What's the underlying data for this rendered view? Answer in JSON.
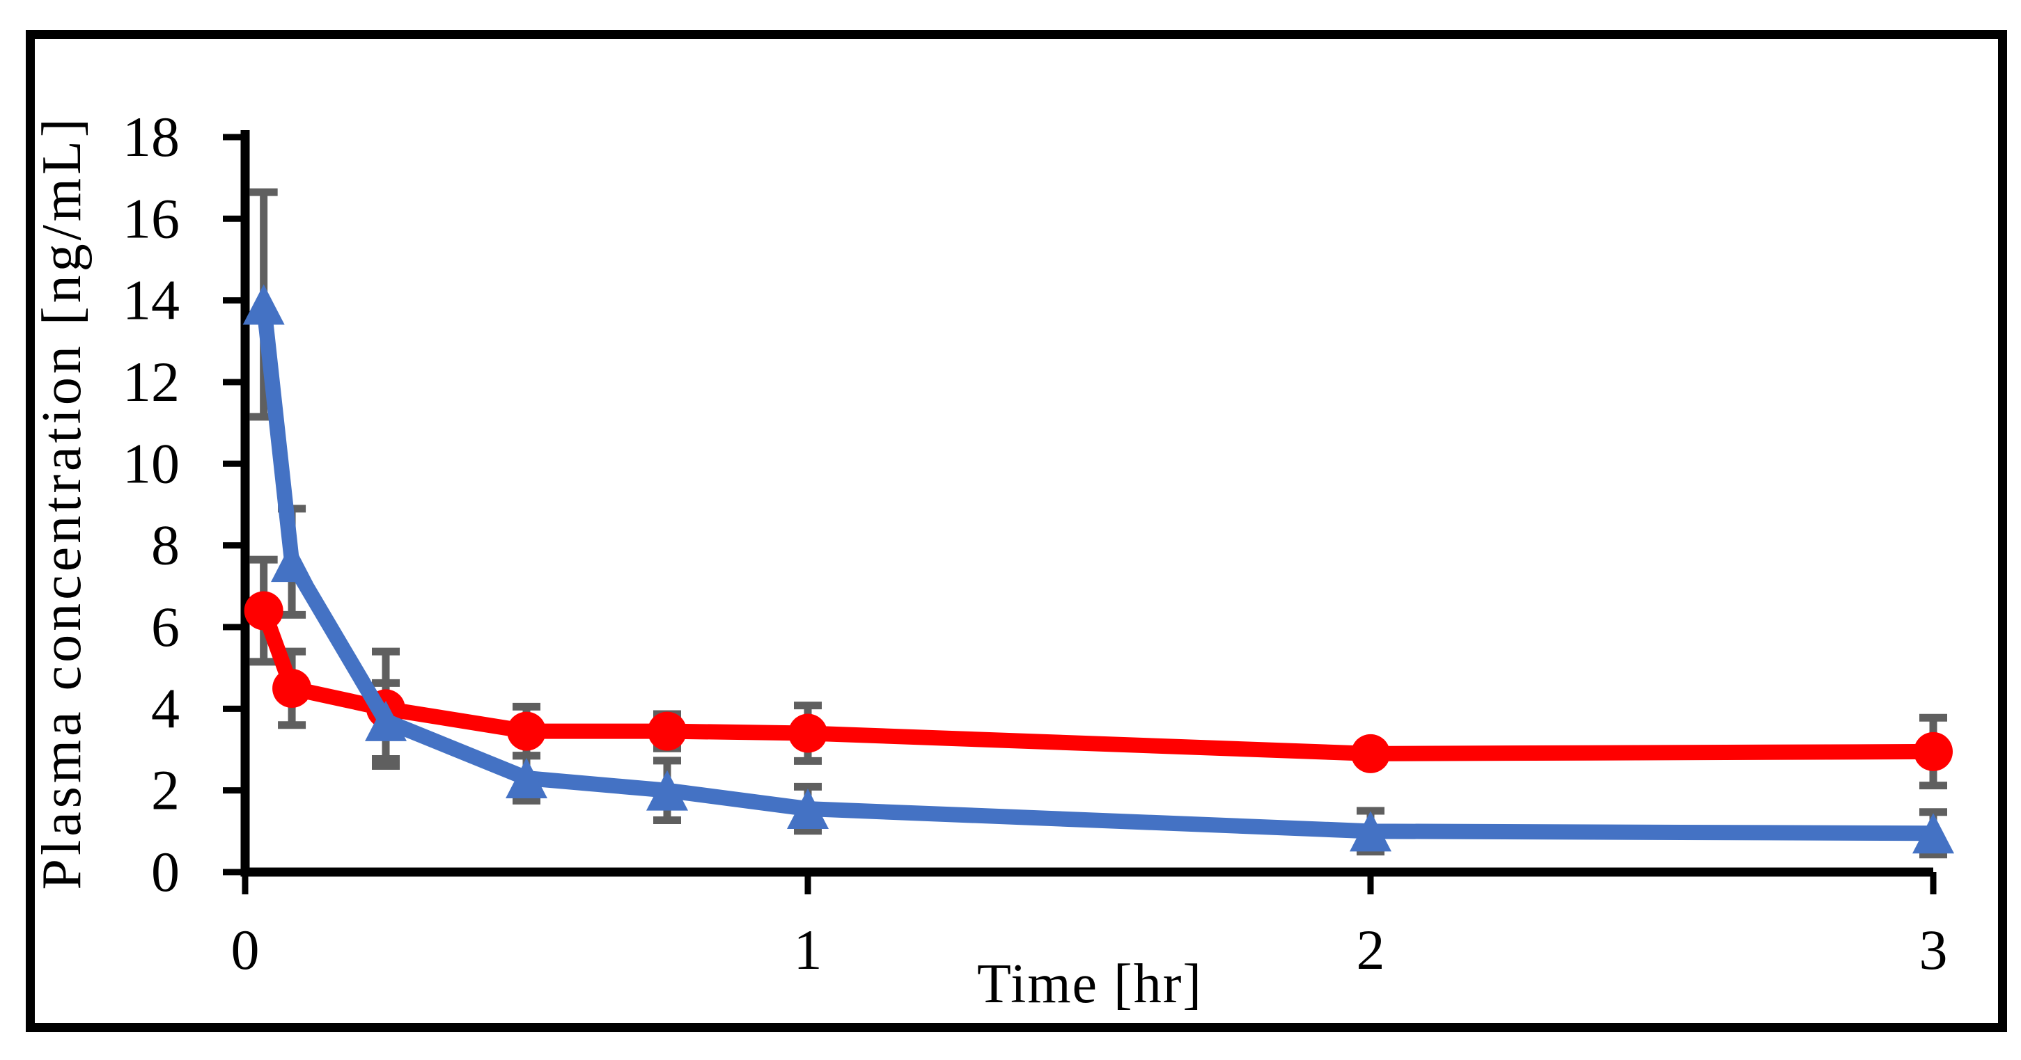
{
  "chart_data": {
    "type": "line",
    "xlabel": "Time [hr]",
    "ylabel": "Plasma concentration [ng/mL]",
    "x": [
      0.033,
      0.083,
      0.25,
      0.5,
      0.75,
      1,
      2,
      3
    ],
    "series": [
      {
        "name": "red-circle-series",
        "marker": "circle",
        "color": "#ff0000",
        "values": [
          6.4,
          4.5,
          4.0,
          3.45,
          3.45,
          3.4,
          2.9,
          2.95
        ],
        "errors": [
          1.25,
          0.9,
          1.4,
          0.6,
          0.42,
          0.68,
          0.25,
          0.83
        ]
      },
      {
        "name": "blue-triangle-series",
        "marker": "triangle",
        "color": "#4472c4",
        "values": [
          13.9,
          7.6,
          3.7,
          2.3,
          2.0,
          1.55,
          1.0,
          0.95
        ],
        "errors": [
          2.75,
          1.3,
          0.93,
          0.55,
          0.73,
          0.54,
          0.5,
          0.52
        ]
      }
    ],
    "error_bar_color": "#5f5f5f",
    "axis_color": "#000000",
    "xlim": [
      0,
      3
    ],
    "ylim": [
      0,
      18
    ],
    "xticks": [
      0,
      1,
      2,
      3
    ],
    "yticks": [
      0,
      2,
      4,
      6,
      8,
      10,
      12,
      14,
      16,
      18
    ],
    "grid": false,
    "legend_position": "none"
  }
}
